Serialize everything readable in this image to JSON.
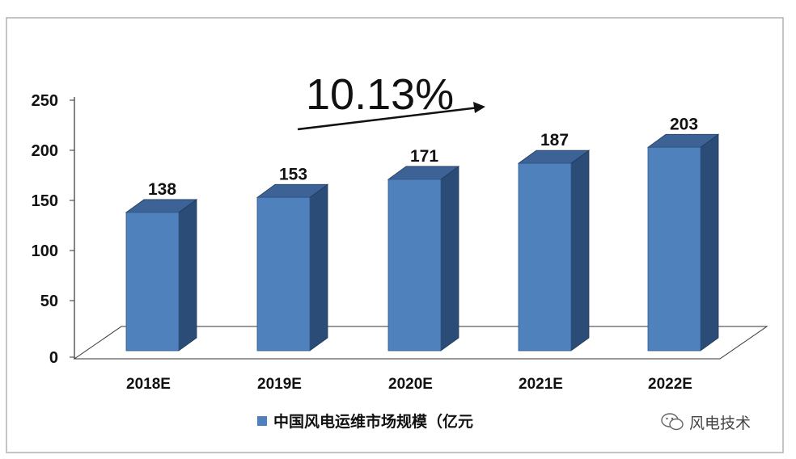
{
  "chart_data": {
    "type": "bar",
    "categories": [
      "2018E",
      "2019E",
      "2020E",
      "2021E",
      "2022E"
    ],
    "series": [
      {
        "name": "中国风电运维市场规模（亿元",
        "values": [
          138,
          153,
          171,
          187,
          203
        ]
      }
    ],
    "data_labels": [
      "138",
      "153",
      "171",
      "187",
      "203"
    ],
    "y_ticks": [
      "0",
      "50",
      "100",
      "150",
      "200",
      "250"
    ],
    "ylim": [
      0,
      250
    ],
    "annotation": "10.13%",
    "legend_position": "bottom",
    "grid": false,
    "colors": {
      "bar_front": "#4F81BD",
      "bar_side": "#2B4C77",
      "bar_top": "#3D6396"
    }
  },
  "watermark": {
    "text": "风电技术",
    "icon": "wechat-icon"
  }
}
